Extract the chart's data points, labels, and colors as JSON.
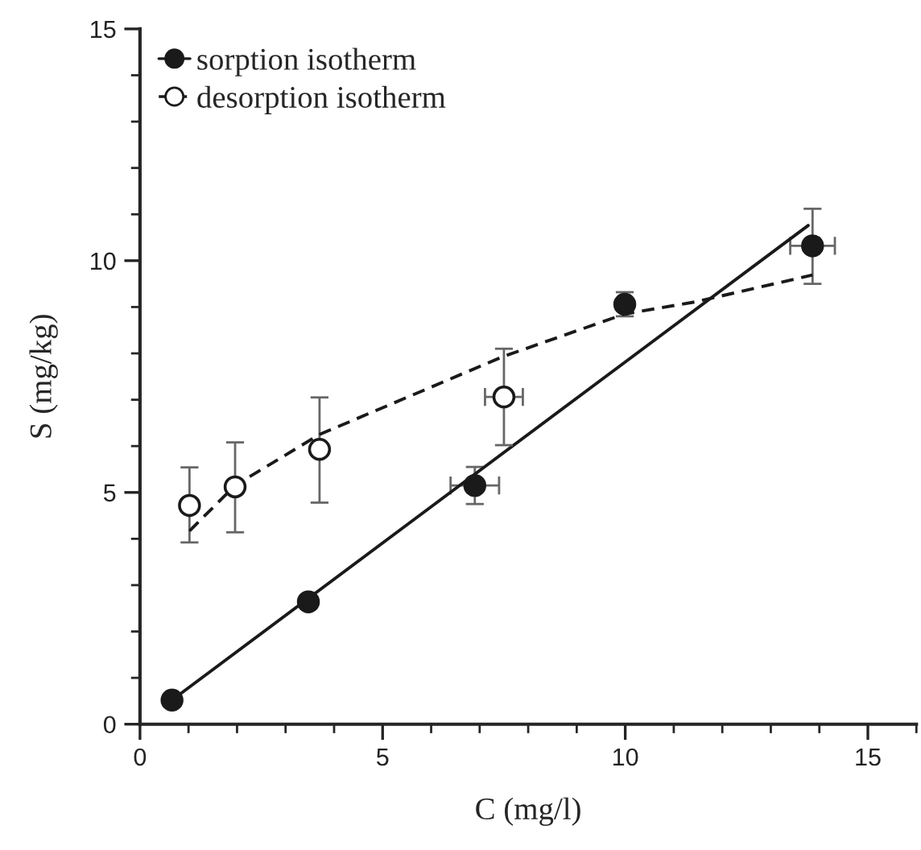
{
  "chart_data": {
    "type": "scatter",
    "xlabel": "C (mg/l)",
    "ylabel": "S (mg/kg)",
    "xlim": [
      0,
      16
    ],
    "xticks": [
      0,
      5,
      10,
      15
    ],
    "ylim": [
      0,
      15
    ],
    "yticks": [
      0,
      5,
      10,
      15
    ],
    "grid": false,
    "legend": "top left",
    "series": [
      {
        "name": "sorption isotherm",
        "marker": "circle",
        "color": "#1a1a1a",
        "x": [
          0.66,
          3.47,
          6.9,
          9.99,
          13.86
        ],
        "values": [
          0.52,
          2.64,
          5.15,
          9.06,
          10.32
        ],
        "errors": [
          null,
          null,
          [
            4.75,
            5.55
          ],
          [
            8.8,
            9.32
          ],
          [
            9.5,
            11.12
          ]
        ],
        "xerrors": [
          null,
          null,
          0.5,
          null,
          0.46
        ]
      },
      {
        "type": "line",
        "line_style": "solid",
        "color": "#1a1a1a",
        "x": [
          0.66,
          13.77
        ],
        "values": [
          0.52,
          10.76
        ]
      },
      {
        "name": "desorption isotherm",
        "marker": "circle",
        "color": "#ffffff",
        "x": [
          1.02,
          1.96,
          3.7,
          7.5
        ],
        "values": [
          4.72,
          5.12,
          5.93,
          7.06
        ],
        "errors": [
          [
            3.92,
            5.54
          ],
          [
            4.14,
            6.08
          ],
          [
            4.78,
            7.05
          ],
          [
            6.02,
            8.1
          ]
        ],
        "xerrors": [
          null,
          null,
          null,
          0.39
        ]
      },
      {
        "type": "line",
        "line_style": "dashed",
        "color": "#1a1a1a",
        "x": [
          1.02,
          1.96,
          3.7,
          7.48,
          9.99,
          11.44,
          13.86
        ],
        "values": [
          4.17,
          5.15,
          6.25,
          7.93,
          8.85,
          9.11,
          9.69
        ]
      }
    ]
  }
}
